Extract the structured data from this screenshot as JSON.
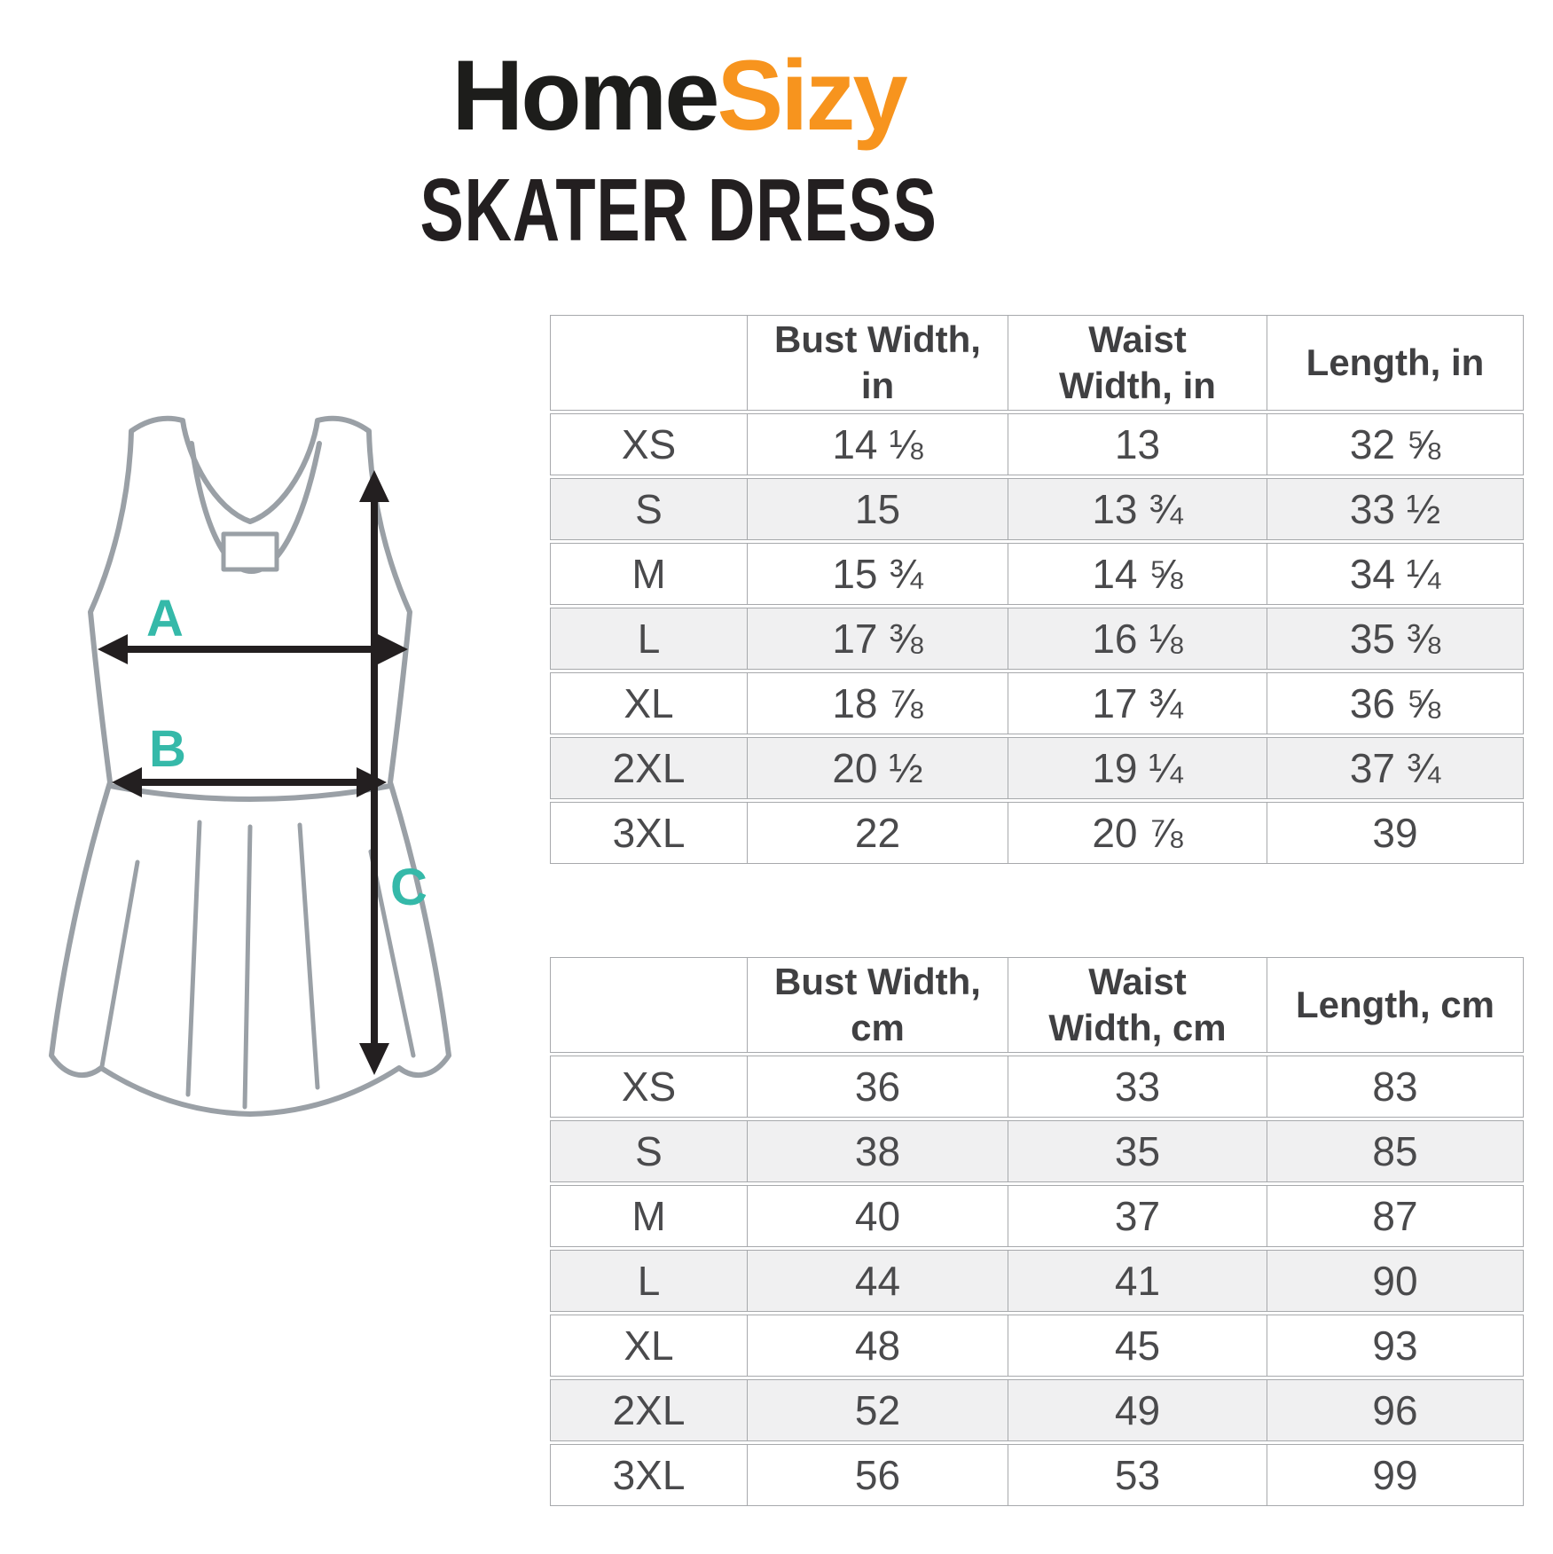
{
  "brand": {
    "name_black": "Home",
    "name_orange": "Sizy",
    "orange_hex": "#f7941e",
    "black_hex": "#1d1d1b"
  },
  "title": "SKATER DRESS",
  "diagram": {
    "description": "sleeveless skater dress outline with measurement arrows",
    "labels": {
      "bust": "A",
      "waist": "B",
      "length": "C"
    },
    "label_color_hex": "#35b9a9",
    "outline_color_hex": "#9aa0a6",
    "arrow_color_hex": "#231f20"
  },
  "chart_data": [
    {
      "type": "table",
      "title": "Skater Dress size chart (inches)",
      "columns": [
        "",
        "Bust Width,\nin",
        "Waist\nWidth, in",
        "Length, in"
      ],
      "rows": [
        [
          "XS",
          "14 ⅛",
          "13",
          "32 ⅝"
        ],
        [
          "S",
          "15",
          "13 ¾",
          "33 ½"
        ],
        [
          "M",
          "15 ¾",
          "14 ⅝",
          "34 ¼"
        ],
        [
          "L",
          "17 ⅜",
          "16 ⅛",
          "35 ⅜"
        ],
        [
          "XL",
          "18 ⅞",
          "17 ¾",
          "36 ⅝"
        ],
        [
          "2XL",
          "20 ½",
          "19 ¼",
          "37 ¾"
        ],
        [
          "3XL",
          "22",
          "20 ⅞",
          "39"
        ]
      ]
    },
    {
      "type": "table",
      "title": "Skater Dress size chart (centimeters)",
      "columns": [
        "",
        "Bust Width,\ncm",
        "Waist\nWidth, cm",
        "Length, cm"
      ],
      "rows": [
        [
          "XS",
          "36",
          "33",
          "83"
        ],
        [
          "S",
          "38",
          "35",
          "85"
        ],
        [
          "M",
          "40",
          "37",
          "87"
        ],
        [
          "L",
          "44",
          "41",
          "90"
        ],
        [
          "XL",
          "48",
          "45",
          "93"
        ],
        [
          "2XL",
          "52",
          "49",
          "96"
        ],
        [
          "3XL",
          "56",
          "53",
          "99"
        ]
      ]
    }
  ]
}
